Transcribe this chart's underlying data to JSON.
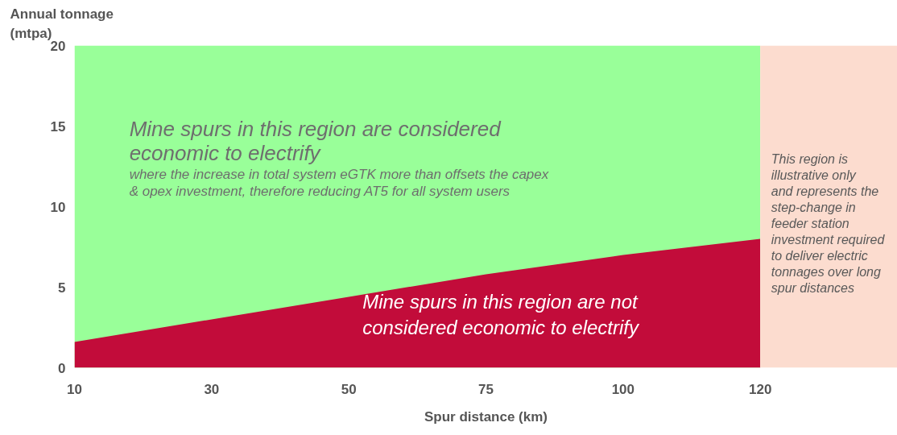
{
  "chart_data": {
    "type": "area",
    "xlabel": "Spur distance (km)",
    "ylabel": "Annual tonnage (mtpa)",
    "categories": [
      "10",
      "30",
      "50",
      "75",
      "100",
      "120",
      null
    ],
    "series": [
      {
        "color": "#99ff99",
        "values": [
          20,
          20,
          20,
          20,
          20,
          20,
          null
        ]
      },
      {
        "color": "#c20c3a",
        "values": [
          1.6,
          3.0,
          4.4,
          5.8,
          7.0,
          8.0,
          null
        ]
      },
      {
        "color": "#fcdccf",
        "values": [
          null,
          null,
          null,
          null,
          null,
          20,
          20
        ]
      }
    ],
    "ylim": [
      0,
      20
    ],
    "yticks": [
      0,
      5,
      10,
      15,
      20
    ],
    "annotations": [
      "Mine spurs in this region are considered economic to electrify",
      "where the increase in total system eGTK more than offsets the capex & opex investment, therefore reducing AT5 for all system users",
      "Mine spurs in this region are not considered economic to electrify",
      "This region is illustrative only and represents the step-change in feeder station investment required to deliver electric tonnages over long spur distances"
    ]
  }
}
